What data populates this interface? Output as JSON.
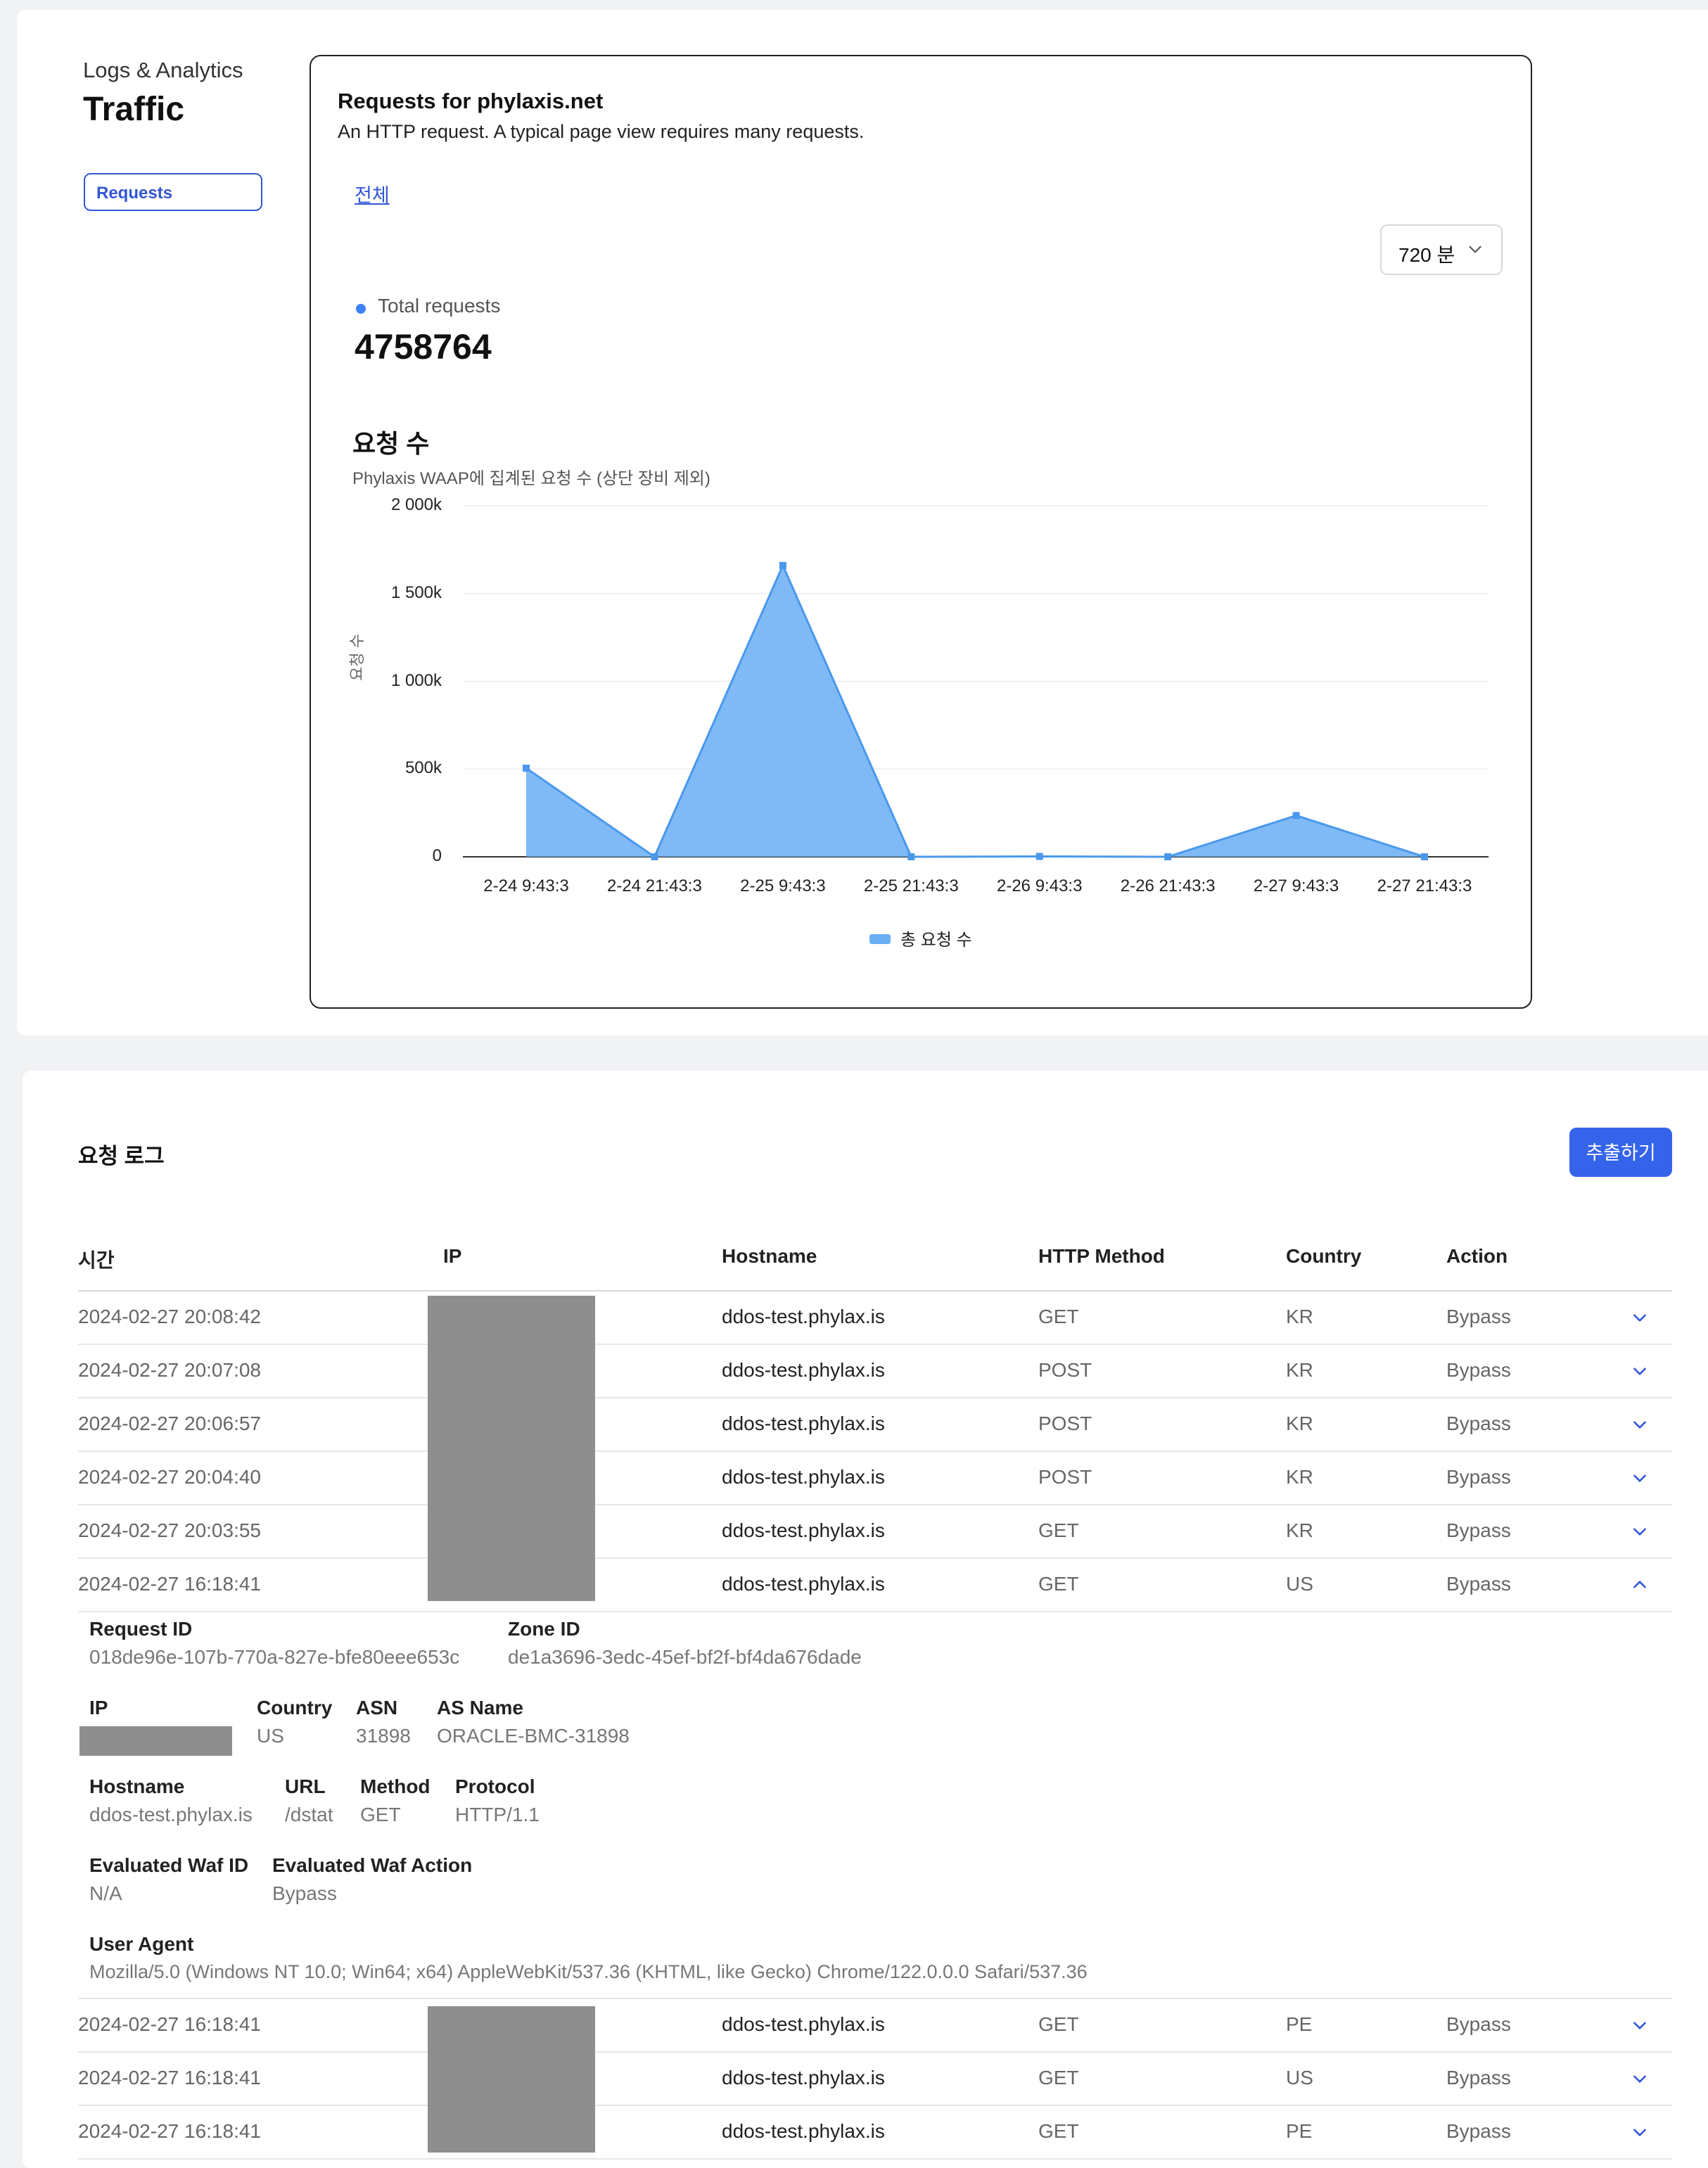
{
  "sidebar": {
    "eyebrow": "Logs & Analytics",
    "title": "Traffic",
    "nav_button": "Requests"
  },
  "panel": {
    "title": "Requests for phylaxis.net",
    "description": "An HTTP request. A typical page view requires many requests.",
    "all_link": "전체",
    "range_select": "720 분",
    "total_label": "Total requests",
    "total_value": "4758764",
    "chart_title": "요청 수",
    "chart_subtitle": "Phylaxis WAAP에 집계된 요청 수 (상단 장비 제외)"
  },
  "chart_data": {
    "type": "area",
    "title": "요청 수",
    "subtitle": "Phylaxis WAAP에 집계된 요청 수 (상단 장비 제외)",
    "ylabel": "요청 수",
    "xlabel": "",
    "x": [
      "2-24 9:43:3",
      "2-24 21:43:3",
      "2-25 9:43:3",
      "2-25 21:43:3",
      "2-26 9:43:3",
      "2-26 21:43:3",
      "2-27 9:43:3",
      "2-27 21:43:3"
    ],
    "yticks": [
      "2 000k",
      "1 500k",
      "1 000k",
      "500k",
      "0"
    ],
    "ylim": [
      0,
      2000000
    ],
    "grid": true,
    "legend_position": "bottom",
    "color": "#6aaef5",
    "series": [
      {
        "name": "총 요청 수",
        "values": [
          505000,
          0,
          1660000,
          0,
          2000,
          0,
          235000,
          0
        ]
      }
    ]
  },
  "log": {
    "title": "요청 로그",
    "export_button": "추출하기",
    "columns": [
      "시간",
      "IP",
      "Hostname",
      "HTTP Method",
      "Country",
      "Action"
    ],
    "rows": [
      {
        "time": "2024-02-27 20:08:42",
        "hostname": "ddos-test.phylax.is",
        "method": "GET",
        "country": "KR",
        "action": "Bypass",
        "expanded": false
      },
      {
        "time": "2024-02-27 20:07:08",
        "hostname": "ddos-test.phylax.is",
        "method": "POST",
        "country": "KR",
        "action": "Bypass",
        "expanded": false
      },
      {
        "time": "2024-02-27 20:06:57",
        "hostname": "ddos-test.phylax.is",
        "method": "POST",
        "country": "KR",
        "action": "Bypass",
        "expanded": false
      },
      {
        "time": "2024-02-27 20:04:40",
        "hostname": "ddos-test.phylax.is",
        "method": "POST",
        "country": "KR",
        "action": "Bypass",
        "expanded": false
      },
      {
        "time": "2024-02-27 20:03:55",
        "hostname": "ddos-test.phylax.is",
        "method": "GET",
        "country": "KR",
        "action": "Bypass",
        "expanded": false
      },
      {
        "time": "2024-02-27 16:18:41",
        "hostname": "ddos-test.phylax.is",
        "method": "GET",
        "country": "US",
        "action": "Bypass",
        "expanded": true
      },
      {
        "time": "2024-02-27 16:18:41",
        "hostname": "ddos-test.phylax.is",
        "method": "GET",
        "country": "PE",
        "action": "Bypass",
        "expanded": false
      },
      {
        "time": "2024-02-27 16:18:41",
        "hostname": "ddos-test.phylax.is",
        "method": "GET",
        "country": "US",
        "action": "Bypass",
        "expanded": false
      },
      {
        "time": "2024-02-27 16:18:41",
        "hostname": "ddos-test.phylax.is",
        "method": "GET",
        "country": "PE",
        "action": "Bypass",
        "expanded": false
      }
    ],
    "detail": {
      "request_id_label": "Request ID",
      "request_id": "018de96e-107b-770a-827e-bfe80eee653c",
      "zone_id_label": "Zone ID",
      "zone_id": "de1a3696-3edc-45ef-bf2f-bf4da676dade",
      "ip_label": "IP",
      "country_label": "Country",
      "country": "US",
      "asn_label": "ASN",
      "asn": "31898",
      "as_name_label": "AS Name",
      "as_name": "ORACLE-BMC-31898",
      "hostname_label": "Hostname",
      "hostname": "ddos-test.phylax.is",
      "url_label": "URL",
      "url": "/dstat",
      "method_label": "Method",
      "method": "GET",
      "protocol_label": "Protocol",
      "protocol": "HTTP/1.1",
      "waf_id_label": "Evaluated Waf ID",
      "waf_id": "N/A",
      "waf_action_label": "Evaluated Waf Action",
      "waf_action": "Bypass",
      "user_agent_label": "User Agent",
      "user_agent": "Mozilla/5.0 (Windows NT 10.0; Win64; x64) AppleWebKit/537.36 (KHTML, like Gecko) Chrome/122.0.0.0 Safari/537.36"
    }
  }
}
